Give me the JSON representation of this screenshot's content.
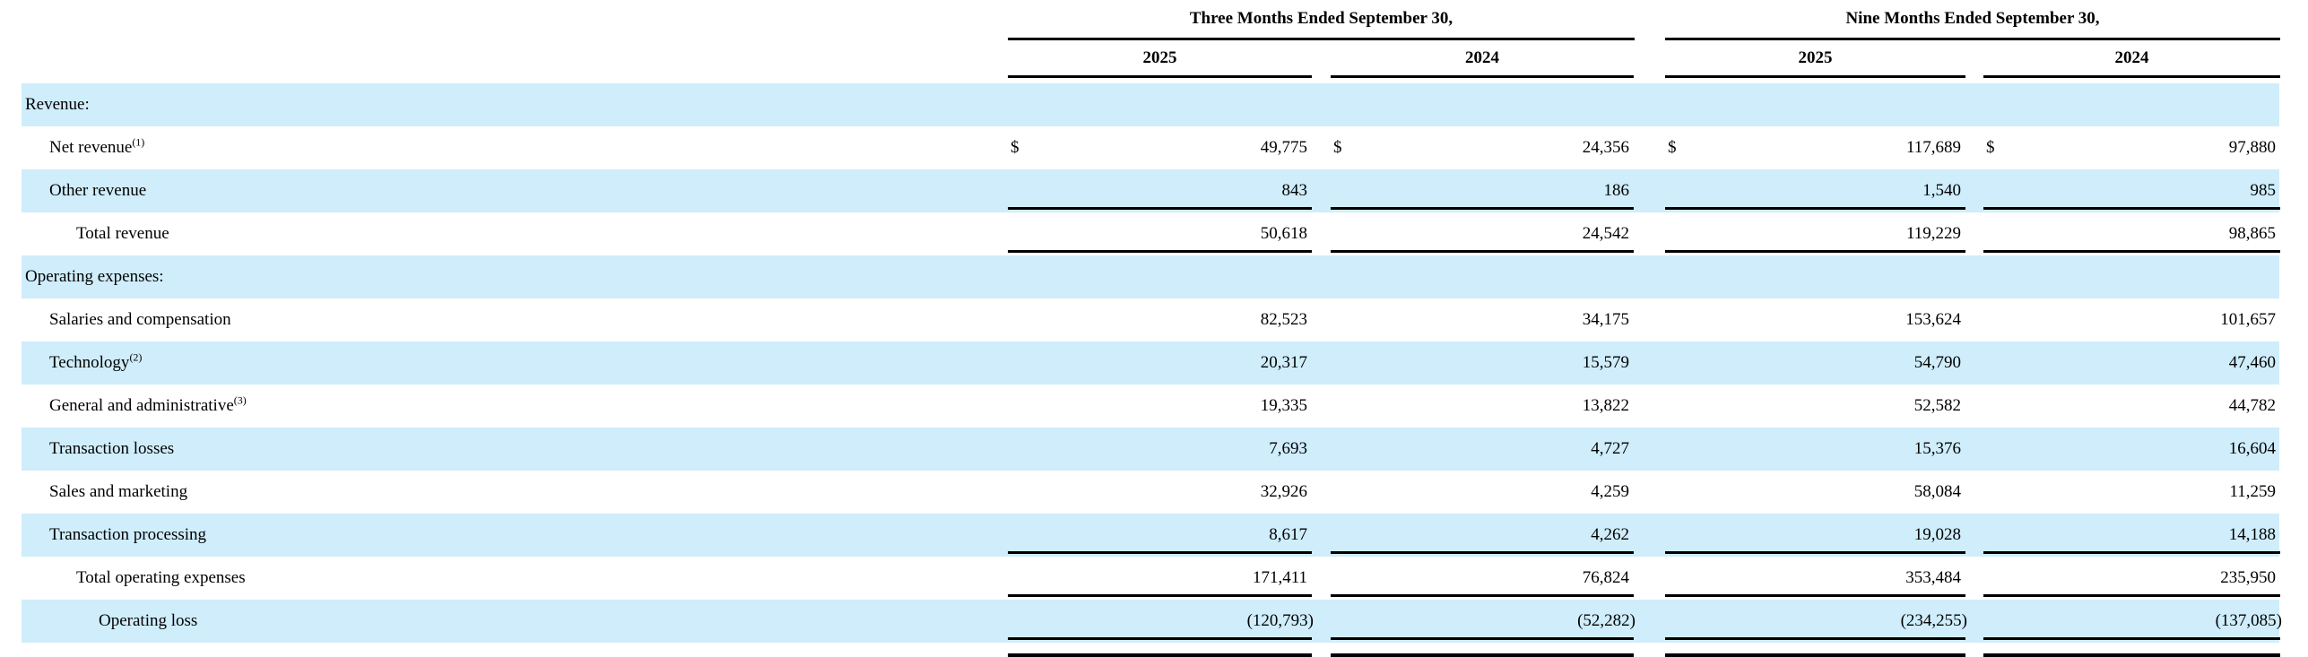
{
  "table": {
    "description": "Condensed statement of operations",
    "colors": {
      "band_blue": "#CFEDFB",
      "rule_black": "#000000"
    },
    "col_groups": [
      {
        "label": "Three Months Ended September 30,",
        "years": [
          "2025",
          "2024"
        ]
      },
      {
        "label": "Nine Months Ended September 30,",
        "years": [
          "2025",
          "2024"
        ]
      }
    ],
    "currency_symbol": "$",
    "rows": [
      {
        "label": "Revenue:",
        "indent": 0,
        "values": [
          "",
          "",
          "",
          ""
        ]
      },
      {
        "label": "Net revenue",
        "sup": "(1)",
        "indent": 1,
        "dollar": "$",
        "values": [
          "49,775",
          "24,356",
          "117,689",
          "97,880"
        ]
      },
      {
        "label": "Other revenue",
        "indent": 1,
        "values": [
          "843",
          "186",
          "1,540",
          "985"
        ]
      },
      {
        "label": "Total revenue",
        "indent": 2,
        "values": [
          "50,618",
          "24,542",
          "119,229",
          "98,865"
        ]
      },
      {
        "label": "Operating expenses:",
        "indent": 0,
        "values": [
          "",
          "",
          "",
          ""
        ]
      },
      {
        "label": "Salaries and compensation",
        "indent": 1,
        "values": [
          "82,523",
          "34,175",
          "153,624",
          "101,657"
        ]
      },
      {
        "label": "Technology",
        "sup": "(2)",
        "indent": 1,
        "values": [
          "20,317",
          "15,579",
          "54,790",
          "47,460"
        ]
      },
      {
        "label": "General and administrative",
        "sup": "(3)",
        "indent": 1,
        "values": [
          "19,335",
          "13,822",
          "52,582",
          "44,782"
        ]
      },
      {
        "label": "Transaction losses",
        "indent": 1,
        "values": [
          "7,693",
          "4,727",
          "15,376",
          "16,604"
        ]
      },
      {
        "label": "Sales and marketing",
        "indent": 1,
        "values": [
          "32,926",
          "4,259",
          "58,084",
          "11,259"
        ]
      },
      {
        "label": "Transaction processing",
        "indent": 1,
        "values": [
          "8,617",
          "4,262",
          "19,028",
          "14,188"
        ]
      },
      {
        "label": "Total operating expenses",
        "indent": 2,
        "values": [
          "171,411",
          "76,824",
          "353,484",
          "235,950"
        ]
      },
      {
        "label": "Operating loss",
        "indent": 3,
        "values": [
          "(120,793)",
          "(52,282)",
          "(234,255)",
          "(137,085)"
        ]
      }
    ]
  }
}
